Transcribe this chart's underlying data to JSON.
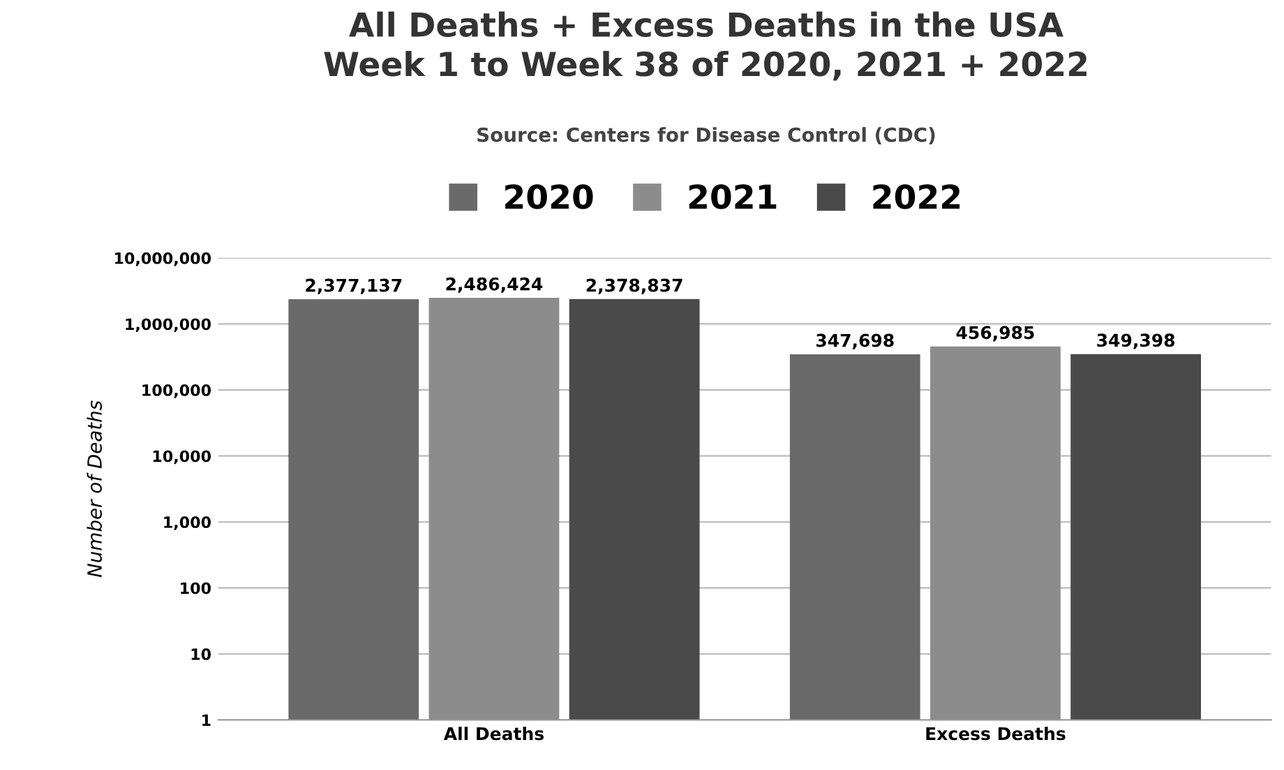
{
  "chart_data": {
    "type": "bar",
    "title": "All Deaths + Excess Deaths in the USA\nWeek 1 to Week 38 of 2020, 2021 + 2022",
    "subtitle": "Source: Centers for Disease Control (CDC)",
    "ylabel": "Number of Deaths",
    "categories": [
      "All Deaths",
      "Excess Deaths"
    ],
    "series": [
      {
        "name": "2020",
        "color": "#6a6a6a",
        "values": [
          2377137,
          347698
        ],
        "value_labels": [
          "2,377,137",
          "347,698"
        ]
      },
      {
        "name": "2021",
        "color": "#8c8c8c",
        "values": [
          2486424,
          456985
        ],
        "value_labels": [
          "2,486,424",
          "456,985"
        ]
      },
      {
        "name": "2022",
        "color": "#4a4a4a",
        "values": [
          2378837,
          349398
        ],
        "value_labels": [
          "2,378,837",
          "349,398"
        ]
      }
    ],
    "log": "y",
    "ylim": [
      1,
      10000000
    ],
    "yticks": [
      {
        "value": 1,
        "label": "1"
      },
      {
        "value": 10,
        "label": "10"
      },
      {
        "value": 100,
        "label": "100"
      },
      {
        "value": 1000,
        "label": "1,000"
      },
      {
        "value": 10000,
        "label": "10,000"
      },
      {
        "value": 100000,
        "label": "100,000"
      },
      {
        "value": 1000000,
        "label": "1,000,000"
      },
      {
        "value": 10000000,
        "label": "10,000,000"
      }
    ],
    "grid": "y",
    "legend": "top"
  }
}
